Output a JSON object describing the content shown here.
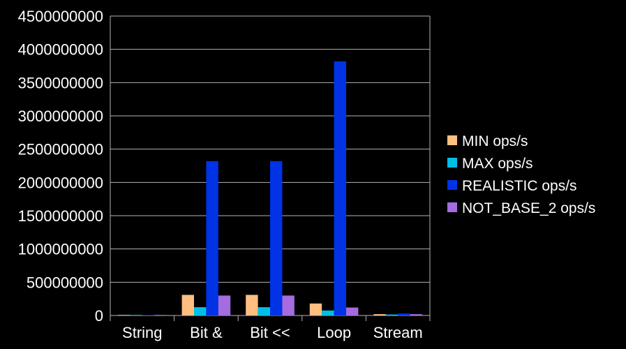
{
  "chart_data": {
    "type": "bar",
    "title": "",
    "xlabel": "",
    "ylabel": "",
    "categories": [
      "String",
      "Bit &",
      "Bit <<",
      "Loop",
      "Stream"
    ],
    "ylim": [
      0,
      4500000000
    ],
    "yticks": [
      0,
      500000000,
      1000000000,
      1500000000,
      2000000000,
      2500000000,
      3000000000,
      3500000000,
      4000000000,
      4500000000
    ],
    "grid": true,
    "legend_position": "right",
    "series": [
      {
        "name": "MIN ops/s",
        "color": "#ffbf80",
        "values": [
          2000000,
          310000000,
          310000000,
          180000000,
          20000000
        ]
      },
      {
        "name": "MAX ops/s",
        "color": "#00bfe6",
        "values": [
          1000000,
          125000000,
          125000000,
          75000000,
          15000000
        ]
      },
      {
        "name": "REALISTIC ops/s",
        "color": "#0033e6",
        "values": [
          1000000,
          2320000000,
          2320000000,
          3820000000,
          30000000
        ]
      },
      {
        "name": "NOT_BASE_2 ops/s",
        "color": "#a56be0",
        "values": [
          1000000,
          300000000,
          300000000,
          120000000,
          20000000
        ]
      }
    ]
  }
}
